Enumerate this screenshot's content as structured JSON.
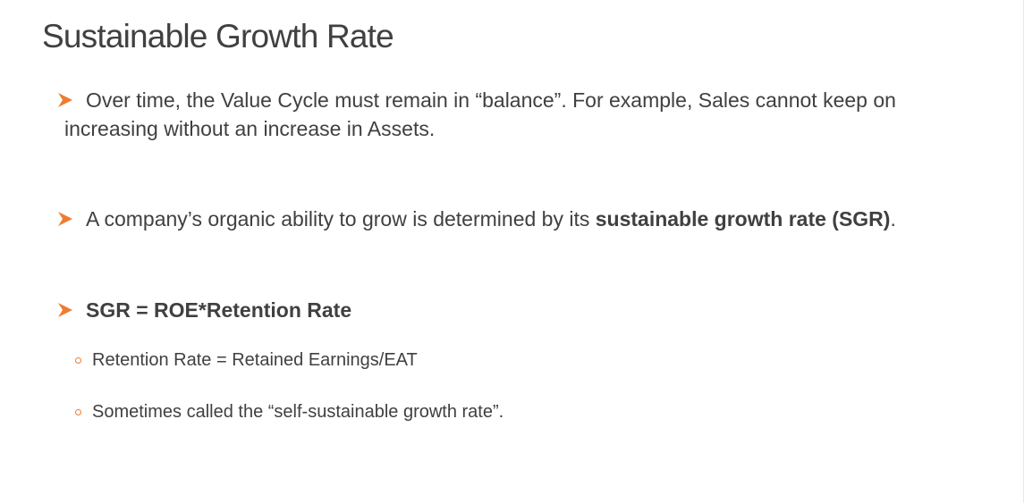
{
  "slide": {
    "title": "Sustainable Growth Rate",
    "accent_color": "#ed7d31",
    "text_color": "#404040",
    "bullets": [
      {
        "icon": "arrowhead-bullet-icon",
        "line1": "Over time, the Value Cycle must remain in “balance”.  For example, Sales cannot keep on",
        "line2": "increasing without an increase in Assets."
      },
      {
        "icon": "arrowhead-bullet-icon",
        "text_before": "A company’s organic ability to grow is determined by its ",
        "bold_text": "sustainable growth rate (SGR)",
        "text_after": "."
      },
      {
        "icon": "arrowhead-bullet-icon",
        "bold_text": "SGR = ROE*Retention Rate",
        "sub_items": [
          {
            "icon": "circle-bullet-icon",
            "text": "Retention Rate = Retained Earnings/EAT"
          },
          {
            "icon": "circle-bullet-icon",
            "text": "Sometimes called the “self-sustainable growth rate”."
          }
        ]
      }
    ]
  }
}
